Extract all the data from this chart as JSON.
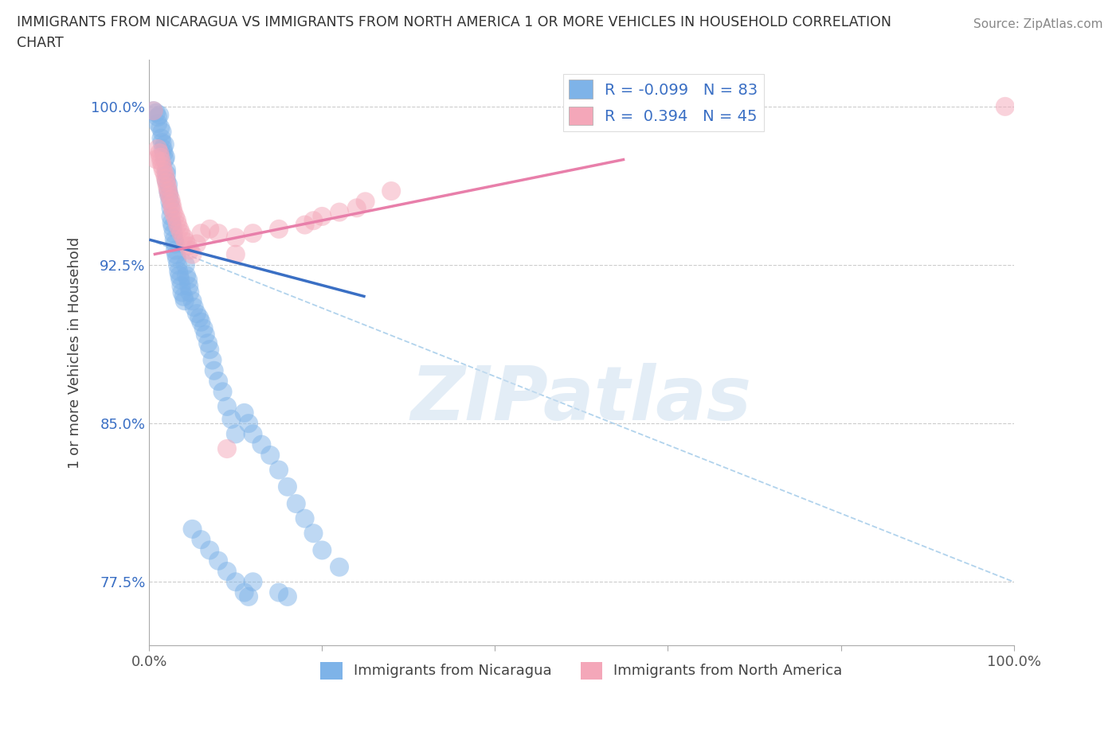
{
  "title_line1": "IMMIGRANTS FROM NICARAGUA VS IMMIGRANTS FROM NORTH AMERICA 1 OR MORE VEHICLES IN HOUSEHOLD CORRELATION",
  "title_line2": "CHART",
  "source": "Source: ZipAtlas.com",
  "ylabel": "1 or more Vehicles in Household",
  "xlim": [
    0.0,
    1.0
  ],
  "ylim": [
    0.745,
    1.022
  ],
  "x_ticks": [
    0.0,
    1.0
  ],
  "x_tick_labels": [
    "0.0%",
    "100.0%"
  ],
  "y_ticks": [
    0.775,
    0.85,
    0.925,
    1.0
  ],
  "y_tick_labels": [
    "77.5%",
    "85.0%",
    "92.5%",
    "100.0%"
  ],
  "R_blue": -0.099,
  "N_blue": 83,
  "R_pink": 0.394,
  "N_pink": 45,
  "blue_color": "#7EB3E8",
  "pink_color": "#F4A7B9",
  "blue_line_color": "#3A6FC4",
  "pink_line_color": "#E87FAA",
  "dashed_line_color": "#9EC8E8",
  "watermark": "ZIPatlas",
  "blue_scatter_x": [
    0.005,
    0.008,
    0.01,
    0.01,
    0.012,
    0.013,
    0.014,
    0.015,
    0.015,
    0.016,
    0.017,
    0.018,
    0.018,
    0.019,
    0.02,
    0.02,
    0.02,
    0.022,
    0.022,
    0.023,
    0.024,
    0.025,
    0.025,
    0.026,
    0.027,
    0.028,
    0.029,
    0.03,
    0.03,
    0.031,
    0.032,
    0.033,
    0.034,
    0.035,
    0.036,
    0.037,
    0.038,
    0.04,
    0.041,
    0.042,
    0.043,
    0.045,
    0.046,
    0.047,
    0.05,
    0.052,
    0.055,
    0.058,
    0.06,
    0.063,
    0.065,
    0.068,
    0.07,
    0.073,
    0.075,
    0.08,
    0.085,
    0.09,
    0.095,
    0.1,
    0.11,
    0.115,
    0.12,
    0.13,
    0.14,
    0.15,
    0.16,
    0.17,
    0.18,
    0.19,
    0.2,
    0.22,
    0.05,
    0.06,
    0.07,
    0.08,
    0.09,
    0.1,
    0.11,
    0.115,
    0.12,
    0.15,
    0.16
  ],
  "blue_scatter_y": [
    0.998,
    0.997,
    0.995,
    0.992,
    0.996,
    0.99,
    0.985,
    0.988,
    0.983,
    0.98,
    0.978,
    0.975,
    0.982,
    0.976,
    0.97,
    0.968,
    0.965,
    0.963,
    0.96,
    0.958,
    0.955,
    0.952,
    0.948,
    0.945,
    0.943,
    0.94,
    0.937,
    0.935,
    0.932,
    0.93,
    0.928,
    0.925,
    0.922,
    0.92,
    0.918,
    0.915,
    0.912,
    0.91,
    0.908,
    0.925,
    0.92,
    0.918,
    0.915,
    0.912,
    0.908,
    0.905,
    0.902,
    0.9,
    0.898,
    0.895,
    0.892,
    0.888,
    0.885,
    0.88,
    0.875,
    0.87,
    0.865,
    0.858,
    0.852,
    0.845,
    0.855,
    0.85,
    0.845,
    0.84,
    0.835,
    0.828,
    0.82,
    0.812,
    0.805,
    0.798,
    0.79,
    0.782,
    0.8,
    0.795,
    0.79,
    0.785,
    0.78,
    0.775,
    0.77,
    0.768,
    0.775,
    0.77,
    0.768
  ],
  "pink_scatter_x": [
    0.005,
    0.008,
    0.01,
    0.012,
    0.013,
    0.014,
    0.015,
    0.016,
    0.018,
    0.019,
    0.02,
    0.021,
    0.022,
    0.023,
    0.025,
    0.026,
    0.027,
    0.028,
    0.03,
    0.032,
    0.033,
    0.035,
    0.037,
    0.04,
    0.042,
    0.045,
    0.047,
    0.05,
    0.055,
    0.06,
    0.07,
    0.08,
    0.09,
    0.1,
    0.12,
    0.15,
    0.18,
    0.19,
    0.2,
    0.22,
    0.24,
    0.25,
    0.28,
    0.1,
    0.99
  ],
  "pink_scatter_y": [
    0.998,
    0.975,
    0.98,
    0.978,
    0.976,
    0.974,
    0.972,
    0.97,
    0.968,
    0.966,
    0.964,
    0.962,
    0.96,
    0.958,
    0.956,
    0.954,
    0.952,
    0.95,
    0.948,
    0.946,
    0.944,
    0.942,
    0.94,
    0.938,
    0.936,
    0.934,
    0.932,
    0.93,
    0.935,
    0.94,
    0.942,
    0.94,
    0.838,
    0.938,
    0.94,
    0.942,
    0.944,
    0.946,
    0.948,
    0.95,
    0.952,
    0.955,
    0.96,
    0.93,
    1.0
  ],
  "blue_trend_x": [
    0.0,
    0.25
  ],
  "blue_trend_y": [
    0.937,
    0.91
  ],
  "pink_trend_x": [
    0.005,
    0.55
  ],
  "pink_trend_y": [
    0.93,
    0.975
  ],
  "dashed_trend_x": [
    0.0,
    1.0
  ],
  "dashed_trend_y": [
    0.937,
    0.775
  ]
}
